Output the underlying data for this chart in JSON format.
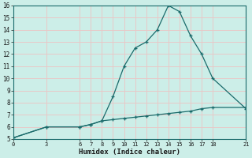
{
  "xlabel": "Humidex (Indice chaleur)",
  "bg_color": "#cceee8",
  "grid_color": "#e8c8c8",
  "line_color": "#1a6b6b",
  "curve1_x": [
    0,
    3,
    6,
    7,
    8,
    9,
    10,
    11,
    12,
    13,
    14,
    15,
    16,
    17,
    18,
    21
  ],
  "curve1_y": [
    5.1,
    6.0,
    6.0,
    6.2,
    6.5,
    8.5,
    11.0,
    12.5,
    13.0,
    14.0,
    16.0,
    15.5,
    13.5,
    12.0,
    10.0,
    7.5
  ],
  "curve2_x": [
    0,
    3,
    6,
    7,
    8,
    9,
    10,
    11,
    12,
    13,
    14,
    15,
    16,
    17,
    18,
    21
  ],
  "curve2_y": [
    5.1,
    6.0,
    6.0,
    6.2,
    6.5,
    6.6,
    6.7,
    6.8,
    6.9,
    7.0,
    7.1,
    7.2,
    7.3,
    7.5,
    7.6,
    7.6
  ],
  "xlim": [
    0,
    21
  ],
  "ylim": [
    5,
    16
  ],
  "xticks": [
    0,
    3,
    6,
    7,
    8,
    9,
    10,
    11,
    12,
    13,
    14,
    15,
    16,
    17,
    18,
    21
  ],
  "yticks": [
    5,
    6,
    7,
    8,
    9,
    10,
    11,
    12,
    13,
    14,
    15,
    16
  ]
}
